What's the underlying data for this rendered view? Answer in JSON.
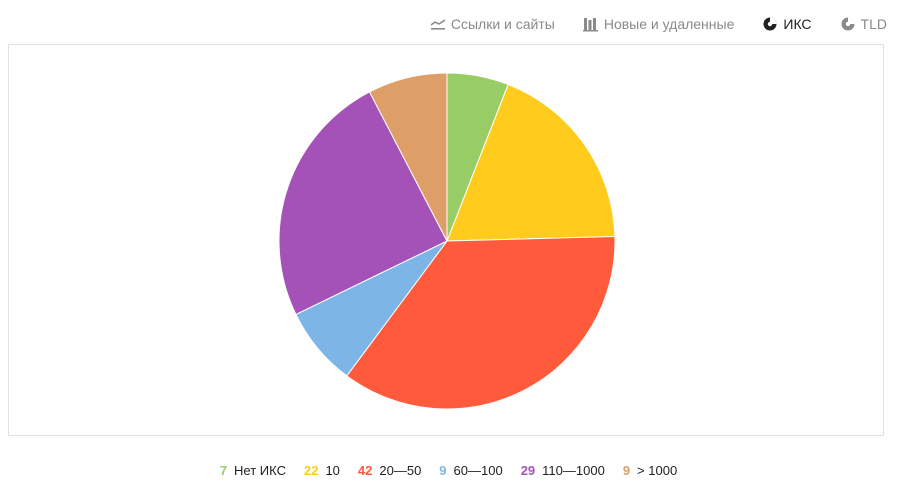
{
  "tabs": [
    {
      "label": "Ссылки и сайты",
      "icon": "line-chart-icon",
      "active": false
    },
    {
      "label": "Новые и удаленные",
      "icon": "bar-chart-icon",
      "active": false
    },
    {
      "label": "ИКС",
      "icon": "pie-chart-icon",
      "active": true
    },
    {
      "label": "TLD",
      "icon": "pie-chart-icon",
      "active": false
    }
  ],
  "chart_data": {
    "type": "pie",
    "categories": [
      "Нет ИКС",
      "10",
      "20—50",
      "60—100",
      "110—1000",
      "> 1000"
    ],
    "values": [
      7,
      22,
      42,
      9,
      29,
      9
    ],
    "colors": [
      "#98cc64",
      "#ffcc1e",
      "#ff5a3c",
      "#7cb5e6",
      "#a452b7",
      "#dd9e68"
    ]
  },
  "legend": [
    {
      "count": "7",
      "label": "Нет ИКС",
      "color": "#98cc64"
    },
    {
      "count": "22",
      "label": "10",
      "color": "#ffcc1e"
    },
    {
      "count": "42",
      "label": "20—50",
      "color": "#ff5a3c"
    },
    {
      "count": "9",
      "label": "60—100",
      "color": "#7cb5e6"
    },
    {
      "count": "29",
      "label": "110—1000",
      "color": "#a452b7"
    },
    {
      "count": "9",
      "label": "> 1000",
      "color": "#dd9e68"
    }
  ]
}
